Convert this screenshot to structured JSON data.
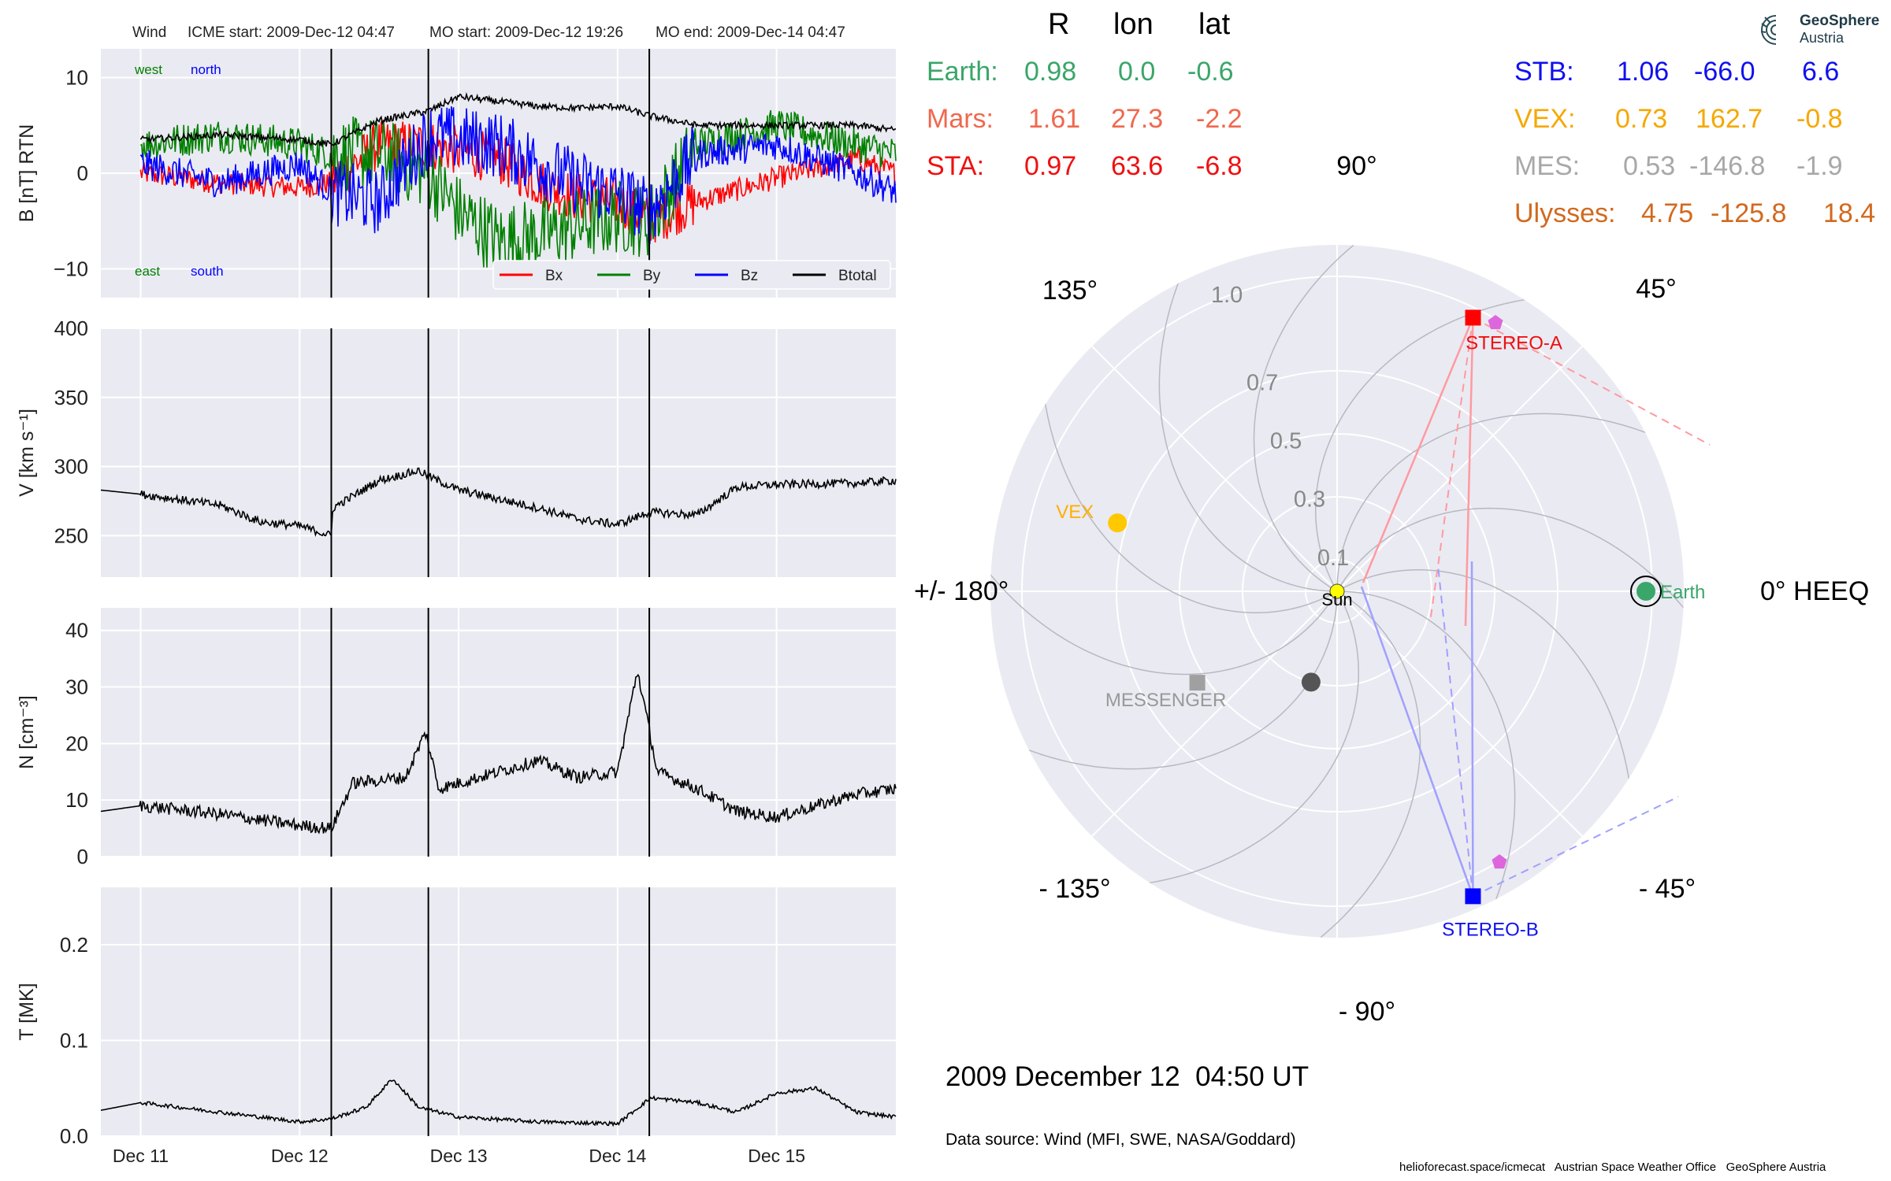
{
  "header": {
    "wind_label": "Wind",
    "icme_start": "ICME start: 2009-Dec-12 04:47",
    "mo_start": "MO start: 2009-Dec-12 19:26",
    "mo_end": "MO end: 2009-Dec-14 04:47"
  },
  "logo": {
    "line1": "GeoSphere",
    "line2": "Austria"
  },
  "positions_table": {
    "columns": [
      "R",
      "lon",
      "lat"
    ],
    "rows_left": [
      {
        "name": "Earth:",
        "R": "0.98",
        "lon": "0.0",
        "lat": "-0.6",
        "color": "#3aa66a"
      },
      {
        "name": "Mars:",
        "R": "1.61",
        "lon": "27.3",
        "lat": "-2.2",
        "color": "#f0684e"
      },
      {
        "name": "STA:",
        "R": "0.97",
        "lon": "63.6",
        "lat": "-6.8",
        "color": "#ee1111"
      }
    ],
    "rows_right": [
      {
        "name": "STB:",
        "R": "1.06",
        "lon": "-66.0",
        "lat": "6.6",
        "color": "#1111ee"
      },
      {
        "name": "VEX:",
        "R": "0.73",
        "lon": "162.7",
        "lat": "-0.8",
        "color": "#f5a800"
      },
      {
        "name": "MES:",
        "R": "0.53",
        "lon": "-146.8",
        "lat": "-1.9",
        "color": "#a8a8a8"
      },
      {
        "name": "Ulysses:",
        "R": "4.75",
        "lon": "-125.8",
        "lat": "18.4",
        "color": "#d2691e"
      }
    ]
  },
  "date_label": "2009 December 12  04:50 UT",
  "data_source": "Data source: Wind (MFI, SWE, NASA/Goddard)",
  "footer": "helioforecast.space/icmecat   Austrian Space Weather Office   GeoSphere Austria",
  "chart_data": [
    {
      "type": "line",
      "title": "",
      "ylabel": "B [nT] RTN",
      "ylim": [
        -13,
        13
      ],
      "yticks": [
        10,
        0,
        -10
      ],
      "ytick_labels": [
        "10",
        "0",
        "−10"
      ],
      "xlim": [
        "2009-12-10 18:00",
        "2009-12-15 18:00"
      ],
      "xticks": [
        "2009-12-11",
        "2009-12-12",
        "2009-12-13",
        "2009-12-14",
        "2009-12-15"
      ],
      "xtick_labels": [
        "Dec 11",
        "Dec 12",
        "Dec 13",
        "Dec 14",
        "Dec 15"
      ],
      "annotations": [
        {
          "text": "west",
          "color": "#008000"
        },
        {
          "text": "north",
          "color": "#0000ff"
        },
        {
          "text": "east",
          "color": "#008000"
        },
        {
          "text": "south",
          "color": "#0000ff"
        }
      ],
      "legend": {
        "placement": "lower-right",
        "entries": [
          {
            "name": "Bx",
            "color": "#ff0000"
          },
          {
            "name": "By",
            "color": "#008000"
          },
          {
            "name": "Bz",
            "color": "#0000ff"
          },
          {
            "name": "Btotal",
            "color": "#000000"
          }
        ]
      },
      "series": [
        {
          "name": "Bx",
          "color": "#ff0000",
          "x": [
            "2009-12-11 00:00",
            "2009-12-11 12:00",
            "2009-12-12 00:00",
            "2009-12-12 04:47",
            "2009-12-12 12:00",
            "2009-12-12 19:26",
            "2009-12-13 06:00",
            "2009-12-13 12:00",
            "2009-12-13 18:00",
            "2009-12-14 00:00",
            "2009-12-14 04:47",
            "2009-12-14 12:00",
            "2009-12-15 00:00",
            "2009-12-15 12:00",
            "2009-12-15 18:00"
          ],
          "values": [
            0,
            -1,
            -1.5,
            -1,
            3,
            3,
            1.5,
            -1,
            -2.5,
            -3,
            -5,
            -3,
            -0.5,
            1.5,
            0
          ]
        },
        {
          "name": "By",
          "color": "#008000",
          "x": [
            "2009-12-11 00:00",
            "2009-12-11 12:00",
            "2009-12-12 00:00",
            "2009-12-12 04:47",
            "2009-12-12 12:00",
            "2009-12-12 19:26",
            "2009-12-13 00:00",
            "2009-12-13 06:00",
            "2009-12-13 12:00",
            "2009-12-13 18:00",
            "2009-12-14 00:00",
            "2009-12-14 04:47",
            "2009-12-14 12:00",
            "2009-12-15 00:00",
            "2009-12-15 12:00",
            "2009-12-15 18:00"
          ],
          "values": [
            3,
            4,
            3,
            2,
            2,
            0,
            -4,
            -7,
            -6.5,
            -5.5,
            -4.5,
            -5,
            3,
            5,
            3,
            2
          ]
        },
        {
          "name": "Bz",
          "color": "#0000ff",
          "x": [
            "2009-12-11 00:00",
            "2009-12-11 12:00",
            "2009-12-12 00:00",
            "2009-12-12 04:47",
            "2009-12-12 12:00",
            "2009-12-12 19:26",
            "2009-12-13 06:00",
            "2009-12-13 12:00",
            "2009-12-13 18:00",
            "2009-12-14 00:00",
            "2009-12-14 04:47",
            "2009-12-14 12:00",
            "2009-12-15 00:00",
            "2009-12-15 12:00",
            "2009-12-15 18:00"
          ],
          "values": [
            1,
            -1,
            1,
            -2,
            -3,
            4,
            3,
            1,
            -1,
            -2,
            -4,
            2,
            3,
            0,
            -2
          ]
        },
        {
          "name": "Btotal",
          "color": "#000000",
          "x": [
            "2009-12-11 00:00",
            "2009-12-11 12:00",
            "2009-12-12 00:00",
            "2009-12-12 04:47",
            "2009-12-12 12:00",
            "2009-12-12 19:26",
            "2009-12-13 00:00",
            "2009-12-13 06:00",
            "2009-12-13 12:00",
            "2009-12-13 18:00",
            "2009-12-14 00:00",
            "2009-12-14 04:47",
            "2009-12-14 12:00",
            "2009-12-15 00:00",
            "2009-12-15 12:00",
            "2009-12-15 18:00"
          ],
          "values": [
            3.5,
            4,
            3.5,
            3,
            5.5,
            6.5,
            8,
            7.5,
            7,
            6.8,
            7,
            6,
            5,
            5,
            5,
            4.5
          ]
        }
      ]
    },
    {
      "type": "line",
      "title": "",
      "ylabel": "V [km s⁻¹]",
      "ylim": [
        220,
        400
      ],
      "yticks": [
        400,
        350,
        300,
        250
      ],
      "ytick_labels": [
        "400",
        "350",
        "300",
        "250"
      ],
      "xlim": [
        "2009-12-10 18:00",
        "2009-12-15 18:00"
      ],
      "xticks": [
        "2009-12-11",
        "2009-12-12",
        "2009-12-13",
        "2009-12-14",
        "2009-12-15"
      ],
      "xtick_labels": [
        "Dec 11",
        "Dec 12",
        "Dec 13",
        "Dec 14",
        "Dec 15"
      ],
      "series": [
        {
          "name": "",
          "color": "#000000",
          "x": [
            "2009-12-10 18:00",
            "2009-12-11 00:00",
            "2009-12-11 12:00",
            "2009-12-11 18:00",
            "2009-12-12 00:00",
            "2009-12-12 04:47",
            "2009-12-12 05:00",
            "2009-12-12 12:00",
            "2009-12-12 18:00",
            "2009-12-12 19:26",
            "2009-12-13 00:00",
            "2009-12-13 12:00",
            "2009-12-13 18:00",
            "2009-12-14 00:00",
            "2009-12-14 04:47",
            "2009-12-14 12:00",
            "2009-12-14 18:00",
            "2009-12-15 00:00",
            "2009-12-15 12:00",
            "2009-12-15 18:00"
          ],
          "values": [
            283,
            280,
            272,
            260,
            257,
            250,
            270,
            290,
            297,
            293,
            283,
            270,
            262,
            258,
            267,
            265,
            285,
            287,
            288,
            290
          ]
        }
      ]
    },
    {
      "type": "line",
      "title": "",
      "ylabel": "N [cm⁻³]",
      "ylim": [
        0,
        44
      ],
      "yticks": [
        40,
        30,
        20,
        10,
        0
      ],
      "ytick_labels": [
        "40",
        "30",
        "20",
        "10",
        "0"
      ],
      "xlim": [
        "2009-12-10 18:00",
        "2009-12-15 18:00"
      ],
      "xticks": [
        "2009-12-11",
        "2009-12-12",
        "2009-12-13",
        "2009-12-14",
        "2009-12-15"
      ],
      "xtick_labels": [
        "Dec 11",
        "Dec 12",
        "Dec 13",
        "Dec 14",
        "Dec 15"
      ],
      "series": [
        {
          "name": "",
          "color": "#000000",
          "x": [
            "2009-12-10 18:00",
            "2009-12-11 00:00",
            "2009-12-11 12:00",
            "2009-12-12 00:00",
            "2009-12-12 04:47",
            "2009-12-12 08:00",
            "2009-12-12 16:00",
            "2009-12-12 19:00",
            "2009-12-12 21:00",
            "2009-12-13 06:00",
            "2009-12-13 12:00",
            "2009-12-13 18:00",
            "2009-12-14 00:00",
            "2009-12-14 03:00",
            "2009-12-14 06:00",
            "2009-12-14 12:00",
            "2009-12-14 18:00",
            "2009-12-15 00:00",
            "2009-12-15 12:00",
            "2009-12-15 18:00"
          ],
          "values": [
            8,
            9,
            7.5,
            5.5,
            5,
            13,
            14,
            22,
            12,
            15,
            17,
            14,
            15,
            33,
            15,
            12,
            8,
            7,
            11,
            12
          ]
        }
      ]
    },
    {
      "type": "line",
      "title": "",
      "ylabel": "T [MK]",
      "ylim": [
        0,
        0.26
      ],
      "yticks": [
        0.2,
        0.1,
        0.0
      ],
      "ytick_labels": [
        "0.2",
        "0.1",
        "0.0"
      ],
      "xlim": [
        "2009-12-10 18:00",
        "2009-12-15 18:00"
      ],
      "xticks": [
        "2009-12-11",
        "2009-12-12",
        "2009-12-13",
        "2009-12-14",
        "2009-12-15"
      ],
      "xtick_labels": [
        "Dec 11",
        "Dec 12",
        "Dec 13",
        "Dec 14",
        "Dec 15"
      ],
      "series": [
        {
          "name": "",
          "color": "#000000",
          "x": [
            "2009-12-10 18:00",
            "2009-12-11 00:00",
            "2009-12-11 06:00",
            "2009-12-11 18:00",
            "2009-12-12 00:00",
            "2009-12-12 04:47",
            "2009-12-12 10:00",
            "2009-12-12 14:00",
            "2009-12-12 18:00",
            "2009-12-13 00:00",
            "2009-12-13 12:00",
            "2009-12-14 00:00",
            "2009-12-14 05:00",
            "2009-12-14 12:00",
            "2009-12-14 18:00",
            "2009-12-15 00:00",
            "2009-12-15 06:00",
            "2009-12-15 12:00",
            "2009-12-15 18:00"
          ],
          "values": [
            0.027,
            0.035,
            0.03,
            0.02,
            0.015,
            0.018,
            0.03,
            0.06,
            0.03,
            0.02,
            0.015,
            0.013,
            0.04,
            0.035,
            0.025,
            0.045,
            0.05,
            0.025,
            0.02
          ]
        }
      ]
    },
    {
      "type": "scatter",
      "title": "",
      "projection": "polar",
      "angle_ticks": [
        90,
        45,
        0,
        -45,
        -90,
        -135,
        180,
        135
      ],
      "angle_tick_labels": [
        "90°",
        "45°",
        "0° HEEQ",
        "- 45°",
        "- 90°",
        "- 135°",
        "+/- 180°",
        "135°"
      ],
      "radial_ticks": [
        0.1,
        0.3,
        0.5,
        0.7,
        1.0
      ],
      "radial_tick_labels": [
        "0.1",
        "0.3",
        "0.5",
        "0.7",
        "1.0"
      ],
      "rlim": [
        0,
        1.1
      ],
      "points": [
        {
          "name": "Sun",
          "r": 0.0,
          "lon": 0.0,
          "color": "#ffff00",
          "marker": "circle"
        },
        {
          "name": "Earth",
          "r": 0.98,
          "lon": 0.0,
          "color": "#3aa66a",
          "marker": "circle"
        },
        {
          "name": "STEREO-A",
          "r": 0.97,
          "lon": 63.6,
          "color": "#ff0000",
          "marker": "square"
        },
        {
          "name": "STEREO-B",
          "r": 1.06,
          "lon": -66.0,
          "color": "#0000ff",
          "marker": "square"
        },
        {
          "name": "VEX",
          "r": 0.73,
          "lon": 162.7,
          "color": "#ffc800",
          "marker": "circle"
        },
        {
          "name": "MESSENGER",
          "r": 0.53,
          "lon": -146.8,
          "color": "#a0a0a0",
          "marker": "square"
        },
        {
          "name": "",
          "r": 0.3,
          "lon": -106.0,
          "color": "#555555",
          "marker": "circle"
        }
      ]
    }
  ]
}
